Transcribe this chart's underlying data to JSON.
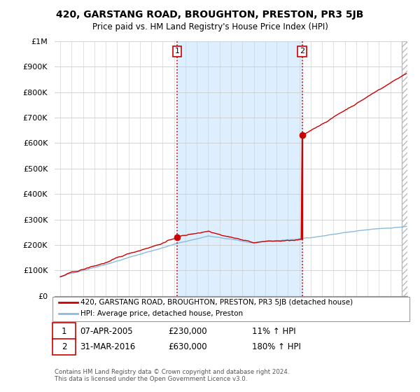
{
  "title": "420, GARSTANG ROAD, BROUGHTON, PRESTON, PR3 5JB",
  "subtitle": "Price paid vs. HM Land Registry's House Price Index (HPI)",
  "property_color": "#cc0000",
  "hpi_color": "#88bbdd",
  "transaction1": {
    "date": "07-APR-2005",
    "price": 230000,
    "hpi_pct": "11%",
    "year": 2005.27
  },
  "transaction2": {
    "date": "31-MAR-2016",
    "price": 630000,
    "hpi_pct": "180%",
    "year": 2016.25
  },
  "ylim": [
    0,
    1000000
  ],
  "yticks": [
    0,
    100000,
    200000,
    300000,
    400000,
    500000,
    600000,
    700000,
    800000,
    900000,
    1000000
  ],
  "xlim_start": 1994.5,
  "xlim_end": 2025.5,
  "footer": "Contains HM Land Registry data © Crown copyright and database right 2024.\nThis data is licensed under the Open Government Licence v3.0.",
  "legend_property": "420, GARSTANG ROAD, BROUGHTON, PRESTON, PR3 5JB (detached house)",
  "legend_hpi": "HPI: Average price, detached house, Preston",
  "background_color": "#ffffff",
  "grid_color": "#cccccc",
  "shade_color": "#ddeeff",
  "hatch_color": "#dddddd"
}
